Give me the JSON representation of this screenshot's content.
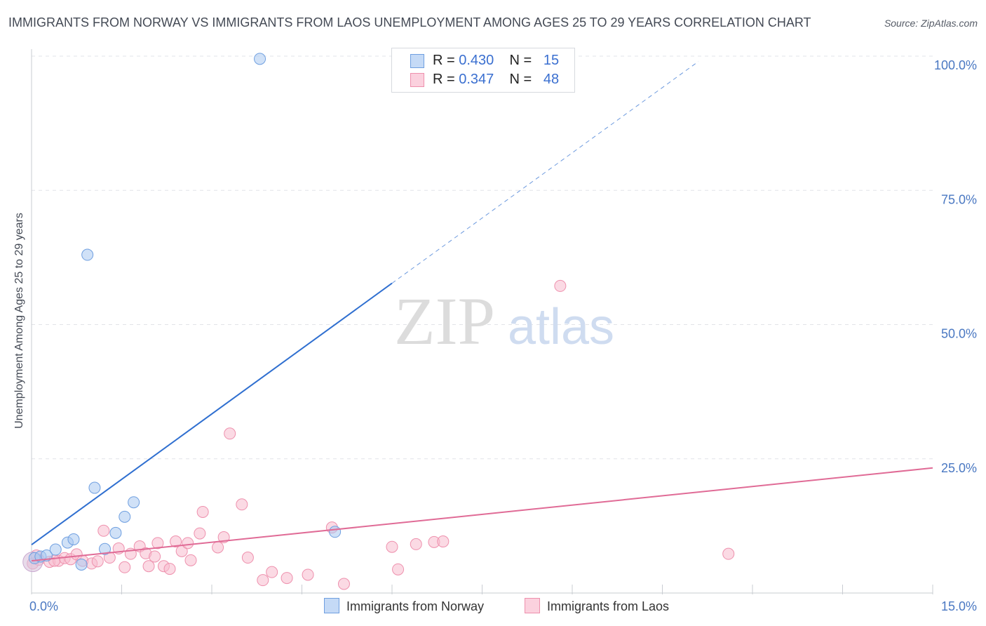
{
  "title": "IMMIGRANTS FROM NORWAY VS IMMIGRANTS FROM LAOS UNEMPLOYMENT AMONG AGES 25 TO 29 YEARS CORRELATION CHART",
  "source": "Source: ZipAtlas.com",
  "watermark": {
    "zip": "ZIP",
    "atlas": "atlas"
  },
  "legend": {
    "norway": {
      "r_label": "R =",
      "r_value": "0.430",
      "n_label": "N =",
      "n_value": "15"
    },
    "laos": {
      "r_label": "R =",
      "r_value": "0.347",
      "n_label": "N =",
      "n_value": "48"
    }
  },
  "bottom_legend": {
    "norway": "Immigrants from Norway",
    "laos": "Immigrants from Laos"
  },
  "colors": {
    "norway_fill": "#a9c8f0",
    "norway_stroke": "#6f9fe0",
    "norway_line": "#2f6fd0",
    "laos_fill": "#f7bccd",
    "laos_stroke": "#ee90ad",
    "laos_line": "#e06b96",
    "tick": "#4a78c2",
    "grid": "#e2e4e8"
  },
  "chart_data": {
    "type": "scatter",
    "title": "IMMIGRANTS FROM NORWAY VS IMMIGRANTS FROM LAOS UNEMPLOYMENT AMONG AGES 25 TO 29 YEARS CORRELATION CHART",
    "xlabel": "",
    "ylabel": "Unemployment Among Ages 25 to 29 years",
    "xlim": [
      0,
      15
    ],
    "ylim": [
      0,
      100
    ],
    "x_tick_labels": [
      {
        "value": 0,
        "label": "0.0%"
      },
      {
        "value": 15,
        "label": "15.0%"
      }
    ],
    "y_tick_labels": [
      {
        "value": 25,
        "label": "25.0%"
      },
      {
        "value": 50,
        "label": "50.0%"
      },
      {
        "value": 75,
        "label": "75.0%"
      },
      {
        "value": 100,
        "label": "100.0%"
      }
    ],
    "grid": true,
    "series": [
      {
        "name": "Immigrants from Norway",
        "R": 0.43,
        "N": 15,
        "points": [
          [
            0.05,
            6.5
          ],
          [
            0.15,
            6.8
          ],
          [
            0.25,
            7.0
          ],
          [
            0.4,
            8.1
          ],
          [
            0.6,
            9.4
          ],
          [
            0.7,
            10.0
          ],
          [
            0.83,
            5.3
          ],
          [
            0.93,
            63.0
          ],
          [
            1.05,
            19.6
          ],
          [
            1.22,
            8.2
          ],
          [
            1.4,
            11.2
          ],
          [
            1.55,
            14.2
          ],
          [
            1.7,
            16.9
          ],
          [
            3.8,
            99.5
          ],
          [
            5.05,
            11.4
          ]
        ],
        "trend": {
          "x0": 0,
          "y0": 9.0,
          "x1_solid": 6.0,
          "y1_solid": 57.7,
          "x1_dash": 11.1,
          "y1_dash": 99.0
        }
      },
      {
        "name": "Immigrants from Laos",
        "R": 0.347,
        "N": 48,
        "points": [
          [
            0.02,
            5.5
          ],
          [
            0.12,
            6.2
          ],
          [
            0.3,
            5.8
          ],
          [
            0.45,
            6.0
          ],
          [
            0.55,
            6.5
          ],
          [
            0.65,
            6.3
          ],
          [
            0.75,
            7.2
          ],
          [
            0.85,
            6.0
          ],
          [
            1.0,
            5.5
          ],
          [
            1.1,
            5.9
          ],
          [
            1.2,
            11.6
          ],
          [
            1.3,
            6.6
          ],
          [
            1.45,
            8.3
          ],
          [
            1.55,
            4.8
          ],
          [
            1.65,
            7.3
          ],
          [
            1.8,
            8.7
          ],
          [
            1.9,
            7.4
          ],
          [
            1.95,
            5.0
          ],
          [
            2.05,
            6.8
          ],
          [
            2.1,
            9.3
          ],
          [
            2.2,
            5.0
          ],
          [
            2.3,
            4.5
          ],
          [
            2.4,
            9.6
          ],
          [
            2.5,
            7.8
          ],
          [
            2.6,
            9.3
          ],
          [
            2.65,
            6.1
          ],
          [
            2.8,
            11.1
          ],
          [
            2.85,
            15.1
          ],
          [
            3.1,
            8.5
          ],
          [
            3.2,
            10.4
          ],
          [
            3.3,
            29.7
          ],
          [
            3.5,
            16.5
          ],
          [
            3.6,
            6.6
          ],
          [
            3.85,
            2.4
          ],
          [
            4.0,
            3.9
          ],
          [
            4.25,
            2.8
          ],
          [
            4.6,
            3.4
          ],
          [
            5.0,
            12.2
          ],
          [
            5.2,
            1.7
          ],
          [
            6.0,
            8.6
          ],
          [
            6.1,
            4.4
          ],
          [
            6.4,
            9.1
          ],
          [
            6.7,
            9.5
          ],
          [
            6.85,
            9.6
          ],
          [
            8.8,
            57.2
          ],
          [
            11.6,
            7.3
          ],
          [
            0.08,
            7.0
          ],
          [
            0.38,
            6.0
          ]
        ],
        "trend": {
          "x0": 0,
          "y0": 6.0,
          "x1": 15,
          "y1": 23.3
        }
      }
    ]
  }
}
